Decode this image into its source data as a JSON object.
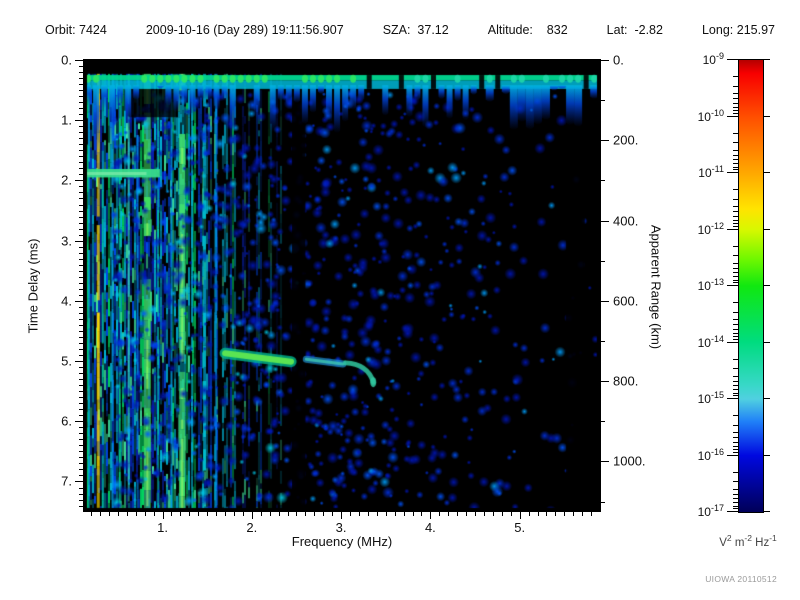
{
  "header": {
    "orbit": "Orbit: 7424",
    "datetime": "2009-10-16 (Day 289) 19:11:56.907",
    "sza": "SZA:  37.12",
    "altitude": "Altitude:    832",
    "lat": "Lat:  -2.82",
    "long": "Long: 215.97"
  },
  "watermark": "UIOWA 20110512",
  "chart_data": {
    "type": "heatmap",
    "subtype": "radar-sounder-ionogram-spectrogram",
    "xlabel": "Frequency (MHz)",
    "ylabel_left": "Time Delay (ms)",
    "ylabel_right": "Apparent Range (km)",
    "x_range_mhz": [
      0.12,
      5.9
    ],
    "y_range_ms": [
      0,
      7.49
    ],
    "km_per_ms": 150,
    "grid": false,
    "x_major_ticks": [
      {
        "v": 1,
        "label": "1."
      },
      {
        "v": 2,
        "label": "2."
      },
      {
        "v": 3,
        "label": "3."
      },
      {
        "v": 4,
        "label": "4."
      },
      {
        "v": 5,
        "label": "5."
      }
    ],
    "x_minor_step": 0.1,
    "y_major_ticks": [
      {
        "v": 0,
        "label": "0."
      },
      {
        "v": 1,
        "label": "1."
      },
      {
        "v": 2,
        "label": "2."
      },
      {
        "v": 3,
        "label": "3."
      },
      {
        "v": 4,
        "label": "4."
      },
      {
        "v": 5,
        "label": "5."
      },
      {
        "v": 6,
        "label": "6."
      },
      {
        "v": 7,
        "label": "7."
      }
    ],
    "y_minor_step": 0.1,
    "range_major_ticks": [
      {
        "v": 0,
        "label": "0."
      },
      {
        "v": 200,
        "label": "200."
      },
      {
        "v": 400,
        "label": "400."
      },
      {
        "v": 600,
        "label": "600."
      },
      {
        "v": 800,
        "label": "800."
      },
      {
        "v": 1000,
        "label": "1000."
      }
    ],
    "range_minor_step": 100,
    "range_minor_max": 1100,
    "colorbar": {
      "scale": "log",
      "top_exp": -9,
      "bottom_exp": -17,
      "tick_exps": [
        "-9",
        "-10",
        "-11",
        "-12",
        "-13",
        "-14",
        "-15",
        "-16",
        "-17"
      ],
      "unit_parts": [
        {
          "base": "V",
          "exp": "2"
        },
        {
          "base": "m",
          "exp": "-2"
        },
        {
          "base": "Hz",
          "exp": "-1"
        }
      ],
      "gradient": [
        [
          0.0,
          "#b40000"
        ],
        [
          0.03,
          "#f80000"
        ],
        [
          0.125,
          "#ff4e00"
        ],
        [
          0.25,
          "#ffa800"
        ],
        [
          0.33,
          "#ffe400"
        ],
        [
          0.375,
          "#d8f800"
        ],
        [
          0.44,
          "#70f800"
        ],
        [
          0.5,
          "#10e810"
        ],
        [
          0.625,
          "#00dc80"
        ],
        [
          0.72,
          "#38d8c8"
        ],
        [
          0.75,
          "#50d0e0"
        ],
        [
          0.8,
          "#2080f8"
        ],
        [
          0.875,
          "#0008e0"
        ],
        [
          1.0,
          "#000058"
        ]
      ]
    },
    "features": {
      "top_blank_band": {
        "t0": 0,
        "t1": 0.23
      },
      "transmit_pulse_band": {
        "t_top": 0.25,
        "t_bot": 0.48,
        "step_mhz": 0.09,
        "drip_max_ms": 1.35
      },
      "noise_stripes": {
        "t_start": 0.22,
        "f_end_dense": 1.65,
        "f_end_fade": 2.35,
        "strong_lines": [
          {
            "f": 0.13,
            "color": "#22dd66",
            "w": 2
          },
          {
            "f": 0.155,
            "color": "#00e070",
            "w": 3
          },
          {
            "f": 0.175,
            "color": "#00b0d0",
            "w": 2
          },
          {
            "f": 0.28,
            "color": "#ffe000",
            "w": 3
          },
          {
            "f": 0.33,
            "color": "#00c8a0",
            "w": 2
          },
          {
            "f": 0.44,
            "color": "#00a0e0",
            "w": 2
          },
          {
            "f": 0.52,
            "color": "#00d080",
            "w": 2
          },
          {
            "f": 0.62,
            "color": "#30c0c0",
            "w": 2
          },
          {
            "f": 0.72,
            "color": "#0080e0",
            "w": 2
          },
          {
            "f": 0.83,
            "color": "#40e060",
            "w": 7
          },
          {
            "f": 0.95,
            "color": "#00c8b0",
            "w": 2
          },
          {
            "f": 1.1,
            "color": "#00a0e0",
            "w": 2
          },
          {
            "f": 1.22,
            "color": "#40e070",
            "w": 6
          },
          {
            "f": 1.33,
            "color": "#00b0d0",
            "w": 2
          },
          {
            "f": 1.47,
            "color": "#00c0d0",
            "w": 3
          },
          {
            "f": 1.6,
            "color": "#0090e0",
            "w": 2
          }
        ]
      },
      "dark_notch": {
        "f0": 0.62,
        "f1": 1.17,
        "t0": 0.48,
        "t1": 0.95
      },
      "absorption_gaps": [
        {
          "f0": 2.45,
          "f1": 2.6
        },
        {
          "f0": 5.52,
          "f1": 5.73
        }
      ],
      "horizontal_line": {
        "t": 1.88,
        "f0": 0.12,
        "f1": 0.97
      },
      "ionospheric_echo": {
        "main_segment": {
          "f0": 1.7,
          "f1": 2.44,
          "t0": 4.87,
          "t1": 5.01
        },
        "faint_segment": {
          "f0": 2.61,
          "f1": 3.02,
          "t0": 4.97,
          "t1": 5.05
        },
        "cusp_hook": {
          "f0": 3.05,
          "f1": 3.36,
          "t0": 5.03,
          "t1": 5.35
        }
      },
      "speckle": {
        "count": 1500,
        "colors": [
          "#0016b8",
          "#0030e0",
          "#0054ff",
          "#00a0ff"
        ],
        "bright": "#00c8e8",
        "f_dense_end": 2.4,
        "t_min": 0.55
      }
    },
    "render_seed": 11
  }
}
